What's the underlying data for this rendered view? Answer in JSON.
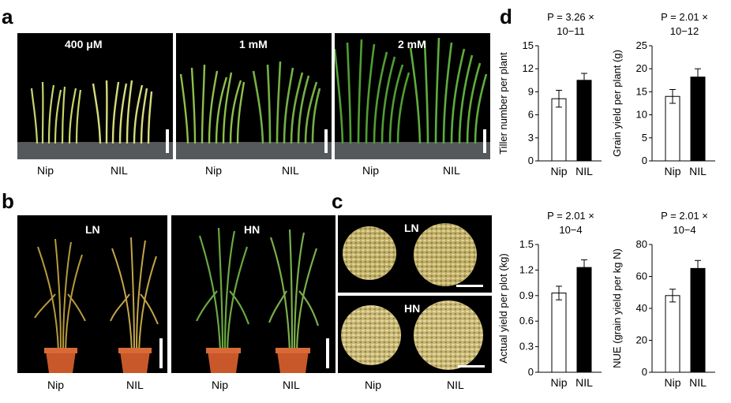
{
  "panels": {
    "a": {
      "letter": "a",
      "conditions": [
        "400 μM",
        "1 mM",
        "2 mM"
      ],
      "labels": [
        [
          "Nip",
          "NIL"
        ],
        [
          "Nip",
          "NIL"
        ],
        [
          "Nip",
          "NIL"
        ]
      ]
    },
    "b": {
      "letter": "b",
      "conditions": [
        "LN",
        "HN"
      ],
      "labels": [
        [
          "Nip",
          "NIL"
        ],
        [
          "Nip",
          "NIL"
        ]
      ]
    },
    "c": {
      "letter": "c",
      "conditions": [
        "LN",
        "HN"
      ],
      "labels": [
        "Nip",
        "NIL"
      ]
    },
    "d": {
      "letter": "d"
    }
  },
  "colors": {
    "photo_bg": "#000000",
    "plant_green": "#5aa83a",
    "plant_yellow": "#c9b66a",
    "pot": "#c8582a",
    "grain": "#cdbd7a",
    "bar_nip": "#ffffff",
    "bar_nil": "#000000"
  },
  "chart_data": [
    {
      "type": "bar",
      "categories": [
        "Nip",
        "NIL"
      ],
      "values": [
        8.1,
        10.5
      ],
      "errors": [
        1.1,
        0.9
      ],
      "ylabel": "Tiller number per plant",
      "ylim": [
        0,
        15
      ],
      "yticks": [
        "0",
        "3",
        "6",
        "9",
        "12",
        "15"
      ],
      "pvalue_line1": "P = 3.26 ×",
      "pvalue_line2": "10−11"
    },
    {
      "type": "bar",
      "categories": [
        "Nip",
        "NIL"
      ],
      "values": [
        14.0,
        18.2
      ],
      "errors": [
        1.5,
        1.8
      ],
      "ylabel": "Grain yield per plant (g)",
      "ylim": [
        0,
        25
      ],
      "yticks": [
        "0",
        "5",
        "10",
        "15",
        "20",
        "25"
      ],
      "pvalue_line1": "P = 2.01 ×",
      "pvalue_line2": "10−12"
    },
    {
      "type": "bar",
      "categories": [
        "Nip",
        "NIL"
      ],
      "values": [
        0.93,
        1.23
      ],
      "errors": [
        0.08,
        0.09
      ],
      "ylabel": "Actual yield per plot (kg)",
      "ylim": [
        0,
        1.5
      ],
      "yticks": [
        "0",
        "0.3",
        "0.6",
        "0.9",
        "1.2",
        "1.5"
      ],
      "pvalue_line1": "P = 2.01 ×",
      "pvalue_line2": "10−4"
    },
    {
      "type": "bar",
      "categories": [
        "Nip",
        "NIL"
      ],
      "values": [
        48,
        65
      ],
      "errors": [
        4,
        5
      ],
      "ylabel": "NUE (grain yield per kg N)",
      "ylim": [
        0,
        80
      ],
      "yticks": [
        "0",
        "20",
        "40",
        "60",
        "80"
      ],
      "pvalue_line1": "P = 2.01 ×",
      "pvalue_line2": "10−4"
    }
  ]
}
